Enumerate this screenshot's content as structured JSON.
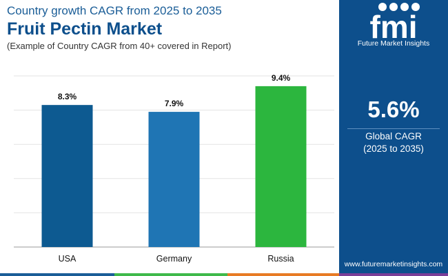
{
  "header": {
    "subtitle": "Country growth CAGR from 2025 to 2035",
    "title": "Fruit Pectin Market",
    "note": "(Example of Country CAGR from 40+ covered in Report)"
  },
  "sidebar": {
    "logo_text": "fmi",
    "logo_caption": "Future Market Insights",
    "cagr_value": "5.6%",
    "cagr_label_line1": "Global CAGR",
    "cagr_label_line2": "(2025 to 2035)",
    "url": "www.futuremarketinsights.com"
  },
  "colors": {
    "sidebar_bg": "#0d4f8c",
    "title": "#0d4f8c",
    "strip": [
      "#1a5d97",
      "#3fb94a",
      "#e87b24",
      "#7a3e98"
    ]
  },
  "chart_data": {
    "type": "bar",
    "categories": [
      "USA",
      "Germany",
      "Russia"
    ],
    "values": [
      8.3,
      7.9,
      9.4
    ],
    "data_labels": [
      "8.3%",
      "7.9%",
      "9.4%"
    ],
    "colors": [
      "#0d5a91",
      "#1f75b4",
      "#2cb63e"
    ],
    "ylim": [
      0,
      10
    ],
    "grid": true,
    "legend": "none",
    "title": "",
    "xlabel": "",
    "ylabel": ""
  }
}
